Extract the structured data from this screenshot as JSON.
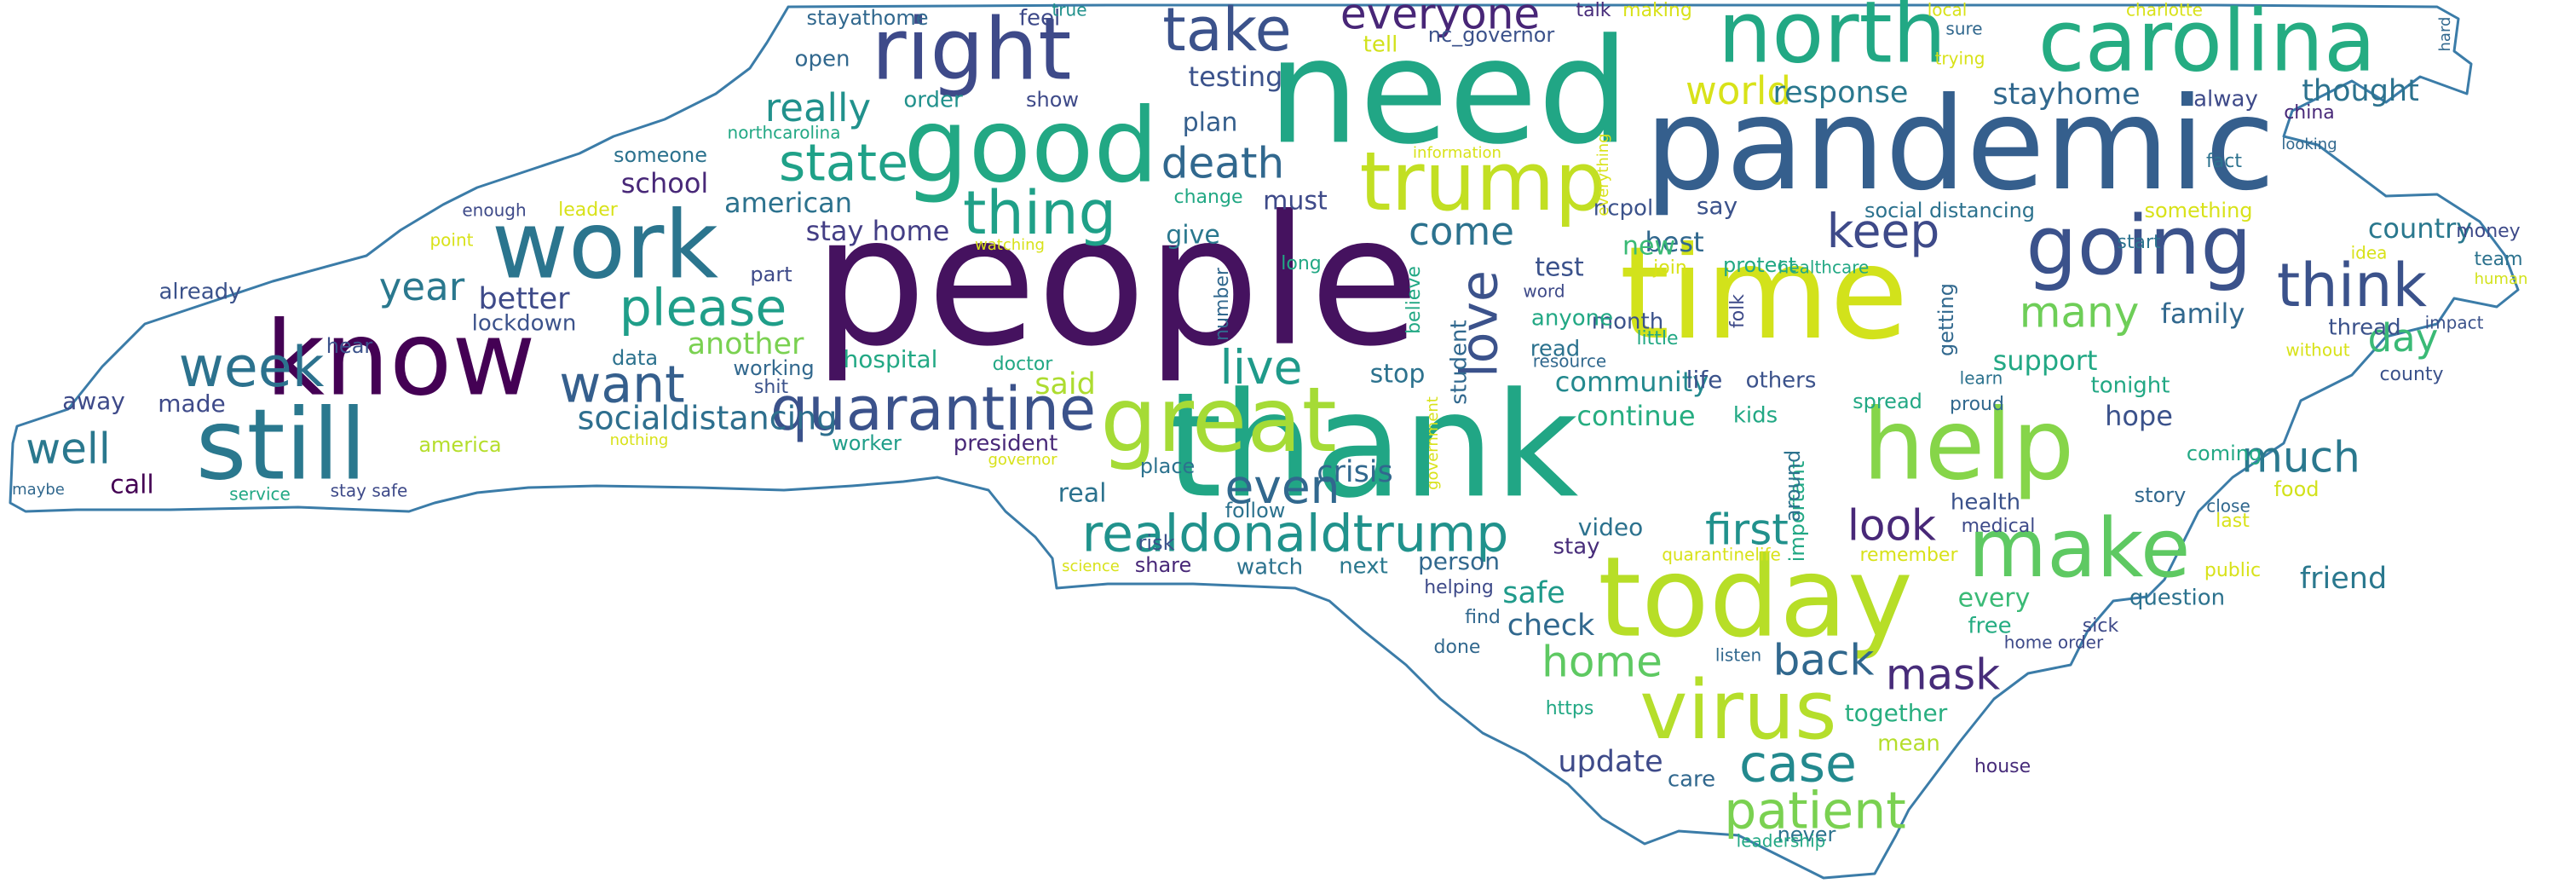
{
  "outline_color": "#3b7ca8",
  "words": [
    {
      "t": "people",
      "c": "#45125f"
    },
    {
      "t": "thank",
      "c": "#21a685"
    },
    {
      "t": "need",
      "c": "#21a685"
    },
    {
      "t": "pandemic",
      "c": "#355f8d"
    },
    {
      "t": "time",
      "c": "#d2e21b"
    },
    {
      "t": "today",
      "c": "#b7de27"
    },
    {
      "t": "know",
      "c": "#440154"
    },
    {
      "t": "good",
      "c": "#22a884"
    },
    {
      "t": "still",
      "c": "#2a788e"
    },
    {
      "t": "help",
      "c": "#86d549"
    },
    {
      "t": "great",
      "c": "#a5db36"
    },
    {
      "t": "carolina",
      "c": "#25ac82"
    },
    {
      "t": "north",
      "c": "#22a884"
    },
    {
      "t": "right",
      "c": "#3e4a89"
    },
    {
      "t": "work",
      "c": "#2b758e"
    },
    {
      "t": "trump",
      "c": "#c2df23"
    },
    {
      "t": "make",
      "c": "#5ec962"
    },
    {
      "t": "going",
      "c": "#3b528b"
    },
    {
      "t": "virus",
      "c": "#b5de2b"
    },
    {
      "t": "quarantine",
      "c": "#3b528b"
    },
    {
      "t": "realdonaldtrump",
      "c": "#20928c"
    },
    {
      "t": "think",
      "c": "#3b528b"
    },
    {
      "t": "thing",
      "c": "#1fa088"
    },
    {
      "t": "take",
      "c": "#3b528b"
    },
    {
      "t": "week",
      "c": "#2c728e"
    },
    {
      "t": "want",
      "c": "#355f8d"
    },
    {
      "t": "case",
      "c": "#23898e"
    },
    {
      "t": "patient",
      "c": "#7ad151"
    },
    {
      "t": "please",
      "c": "#1f9e89"
    },
    {
      "t": "state",
      "c": "#1fa188"
    },
    {
      "t": "love",
      "c": "#3b528b"
    },
    {
      "t": "live",
      "c": "#1f9a8a"
    },
    {
      "t": "even",
      "c": "#31688e"
    },
    {
      "t": "everyone",
      "c": "#482677"
    },
    {
      "t": "death",
      "c": "#31688e"
    },
    {
      "t": "keep",
      "c": "#3e4a89"
    },
    {
      "t": "first",
      "c": "#21918c"
    },
    {
      "t": "much",
      "c": "#2a788e"
    },
    {
      "t": "look",
      "c": "#482878"
    },
    {
      "t": "mask",
      "c": "#472c7a"
    },
    {
      "t": "back",
      "c": "#31688e"
    },
    {
      "t": "home",
      "c": "#5ec962"
    },
    {
      "t": "well",
      "c": "#2a788e"
    },
    {
      "t": "year",
      "c": "#2a788e"
    },
    {
      "t": "really",
      "c": "#21918c"
    },
    {
      "t": "come",
      "c": "#2c728e"
    },
    {
      "t": "many",
      "c": "#6ece58"
    },
    {
      "t": "day",
      "c": "#3aba76"
    },
    {
      "t": "world",
      "c": "#d8e219"
    },
    {
      "t": "socialdistancing",
      "c": "#2e6f8e"
    },
    {
      "t": "response",
      "c": "#2a788e"
    },
    {
      "t": "stayhome",
      "c": "#31688e"
    },
    {
      "t": "thought",
      "c": "#2c728e"
    },
    {
      "t": "friend",
      "c": "#2a788e"
    },
    {
      "t": "update",
      "c": "#3e4a89"
    },
    {
      "t": "crisis",
      "c": "#31688e"
    },
    {
      "t": "said",
      "c": "#addc30"
    },
    {
      "t": "better",
      "c": "#3e4a89"
    },
    {
      "t": "testing",
      "c": "#3b528b"
    },
    {
      "t": "stay home",
      "c": "#433e85"
    },
    {
      "t": "american",
      "c": "#2c728e"
    },
    {
      "t": "school",
      "c": "#482878"
    },
    {
      "t": "another",
      "c": "#7ad151"
    },
    {
      "t": "community",
      "c": "#23898e"
    },
    {
      "t": "continue",
      "c": "#26ad81"
    },
    {
      "t": "country",
      "c": "#2a788e"
    },
    {
      "t": "family",
      "c": "#31688e"
    },
    {
      "t": "support",
      "c": "#22a884"
    },
    {
      "t": "hope",
      "c": "#3b528b"
    },
    {
      "t": "check",
      "c": "#31688e"
    },
    {
      "t": "safe",
      "c": "#1f9a8a"
    },
    {
      "t": "every",
      "c": "#3aba76"
    },
    {
      "t": "give",
      "c": "#2a788e"
    },
    {
      "t": "plan",
      "c": "#355f8d"
    },
    {
      "t": "must",
      "c": "#3e4a89"
    },
    {
      "t": "best",
      "c": "#31688e"
    },
    {
      "t": "new",
      "c": "#3aba76"
    },
    {
      "t": "stop",
      "c": "#2c728e"
    },
    {
      "t": "test",
      "c": "#3b528b"
    },
    {
      "t": "say",
      "c": "#3b528b"
    },
    {
      "t": "call",
      "c": "#440154"
    },
    {
      "t": "made",
      "c": "#3e4a89"
    },
    {
      "t": "away",
      "c": "#3e4a89"
    },
    {
      "t": "already",
      "c": "#3b528b"
    },
    {
      "t": "lockdown",
      "c": "#3b528b"
    },
    {
      "t": "hear",
      "c": "#3b528b"
    },
    {
      "t": "data",
      "c": "#2c728e"
    },
    {
      "t": "working",
      "c": "#31688e"
    },
    {
      "t": "hospital",
      "c": "#22a884"
    },
    {
      "t": "president",
      "c": "#482878"
    },
    {
      "t": "worker",
      "c": "#1f9e89"
    },
    {
      "t": "america",
      "c": "#b5de2b"
    },
    {
      "t": "real",
      "c": "#2c728e"
    },
    {
      "t": "risk",
      "c": "#3b528b"
    },
    {
      "t": "place",
      "c": "#2c728e"
    },
    {
      "t": "follow",
      "c": "#2c728e"
    },
    {
      "t": "share",
      "c": "#482878"
    },
    {
      "t": "watch",
      "c": "#2c728e"
    },
    {
      "t": "next",
      "c": "#2a788e"
    },
    {
      "t": "person",
      "c": "#31688e"
    },
    {
      "t": "video",
      "c": "#2c728e"
    },
    {
      "t": "stay",
      "c": "#472c7a"
    },
    {
      "t": "kids",
      "c": "#22a884"
    },
    {
      "t": "life",
      "c": "#3b528b"
    },
    {
      "t": "others",
      "c": "#3b528b"
    },
    {
      "t": "spread",
      "c": "#22a884"
    },
    {
      "t": "health",
      "c": "#3b528b"
    },
    {
      "t": "story",
      "c": "#31688e"
    },
    {
      "t": "question",
      "c": "#2c728e"
    },
    {
      "t": "free",
      "c": "#25ac82"
    },
    {
      "t": "sick",
      "c": "#3e4a89"
    },
    {
      "t": "together",
      "c": "#28ae80"
    },
    {
      "t": "mean",
      "c": "#b5de2b"
    },
    {
      "t": "care",
      "c": "#31688e"
    },
    {
      "t": "house",
      "c": "#472c7a"
    },
    {
      "t": "never",
      "c": "#2c728e"
    },
    {
      "t": "open",
      "c": "#31688e"
    },
    {
      "t": "order",
      "c": "#21918c"
    },
    {
      "t": "show",
      "c": "#3e4a89"
    },
    {
      "t": "stayathome",
      "c": "#31688e"
    },
    {
      "t": "feel",
      "c": "#3e4a89"
    },
    {
      "t": "true",
      "c": "#21918c"
    },
    {
      "t": "tell",
      "c": "#d2e21b"
    },
    {
      "t": "nc_governor",
      "c": "#3b528b"
    },
    {
      "t": "talk",
      "c": "#472c7a"
    },
    {
      "t": "making",
      "c": "#d8e219"
    },
    {
      "t": "local",
      "c": "#d8e219"
    },
    {
      "t": "charlotte",
      "c": "#d8e219"
    },
    {
      "t": "sure",
      "c": "#31688e"
    },
    {
      "t": "trying",
      "c": "#d8e219"
    },
    {
      "t": "alway",
      "c": "#3e4a89"
    },
    {
      "t": "china",
      "c": "#482878"
    },
    {
      "t": "fact",
      "c": "#2c728e"
    },
    {
      "t": "looking",
      "c": "#31688e"
    },
    {
      "t": "hard",
      "c": "#31688e"
    },
    {
      "t": "something",
      "c": "#d8e219"
    },
    {
      "t": "social distancing",
      "c": "#2c728e"
    },
    {
      "t": "money",
      "c": "#3e4a89"
    },
    {
      "t": "team",
      "c": "#2c728e"
    },
    {
      "t": "human",
      "c": "#d2e21b"
    },
    {
      "t": "idea",
      "c": "#d8e219"
    },
    {
      "t": "impact",
      "c": "#3b528b"
    },
    {
      "t": "thread",
      "c": "#3b528b"
    },
    {
      "t": "without",
      "c": "#d8e219"
    },
    {
      "t": "county",
      "c": "#3b528b"
    },
    {
      "t": "start",
      "c": "#2c728e"
    },
    {
      "t": "tonight",
      "c": "#22a884"
    },
    {
      "t": "learn",
      "c": "#2c728e"
    },
    {
      "t": "proud",
      "c": "#31688e"
    },
    {
      "t": "coming",
      "c": "#22a884"
    },
    {
      "t": "food",
      "c": "#d2e21b"
    },
    {
      "t": "close",
      "c": "#31688e"
    },
    {
      "t": "last",
      "c": "#d8e219"
    },
    {
      "t": "public",
      "c": "#d8e219"
    },
    {
      "t": "medical",
      "c": "#3e4a89"
    },
    {
      "t": "remember",
      "c": "#d8e219"
    },
    {
      "t": "home order",
      "c": "#3e4a89"
    },
    {
      "t": "listen",
      "c": "#31688e"
    },
    {
      "t": "helping",
      "c": "#3e4a89"
    },
    {
      "t": "find",
      "c": "#31688e"
    },
    {
      "t": "done",
      "c": "#31688e"
    },
    {
      "t": "https",
      "c": "#22a884"
    },
    {
      "t": "leadership",
      "c": "#22a884"
    },
    {
      "t": "quarantinelife",
      "c": "#d8e219"
    },
    {
      "t": "important",
      "c": "#22a884"
    },
    {
      "t": "around",
      "c": "#2c728e"
    },
    {
      "t": "getting",
      "c": "#31688e"
    },
    {
      "t": "folk",
      "c": "#3e4a89"
    },
    {
      "t": "little",
      "c": "#22a884"
    },
    {
      "t": "month",
      "c": "#3b528b"
    },
    {
      "t": "join",
      "c": "#d8e219"
    },
    {
      "t": "resource",
      "c": "#31688e"
    },
    {
      "t": "anyone",
      "c": "#22a884"
    },
    {
      "t": "read",
      "c": "#2c728e"
    },
    {
      "t": "protect",
      "c": "#22a884"
    },
    {
      "t": "healthcare",
      "c": "#22a884"
    },
    {
      "t": "ncpol",
      "c": "#3b528b"
    },
    {
      "t": "word",
      "c": "#3e4a89"
    },
    {
      "t": "student",
      "c": "#31688e"
    },
    {
      "t": "believe",
      "c": "#22a884"
    },
    {
      "t": "government",
      "c": "#d8e219"
    },
    {
      "t": "everything",
      "c": "#d8e219"
    },
    {
      "t": "information",
      "c": "#d8e219"
    },
    {
      "t": "number",
      "c": "#31688e"
    },
    {
      "t": "long",
      "c": "#22a884"
    },
    {
      "t": "change",
      "c": "#22a884"
    },
    {
      "t": "watching",
      "c": "#d8e219"
    },
    {
      "t": "doctor",
      "c": "#22a884"
    },
    {
      "t": "shit",
      "c": "#3b528b"
    },
    {
      "t": "governor",
      "c": "#d8e219"
    },
    {
      "t": "part",
      "c": "#3e4a89"
    },
    {
      "t": "science",
      "c": "#d8e219"
    },
    {
      "t": "someone",
      "c": "#2c728e"
    },
    {
      "t": "northcarolina",
      "c": "#22a884"
    },
    {
      "t": "enough",
      "c": "#3e4a89"
    },
    {
      "t": "leader",
      "c": "#d8e219"
    },
    {
      "t": "point",
      "c": "#d8e219"
    },
    {
      "t": "nothing",
      "c": "#d8e219"
    },
    {
      "t": "service",
      "c": "#22a884"
    },
    {
      "t": "stay safe",
      "c": "#3e4a89"
    },
    {
      "t": "maybe",
      "c": "#31688e"
    }
  ]
}
